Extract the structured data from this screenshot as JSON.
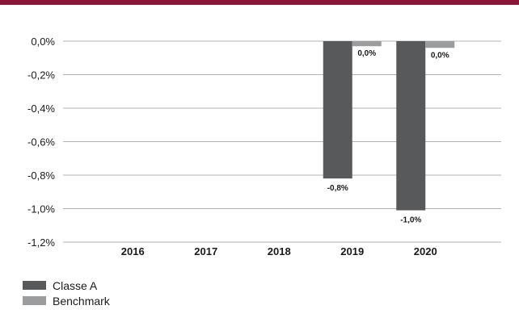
{
  "chart_data": {
    "type": "bar",
    "categories": [
      "2016",
      "2017",
      "2018",
      "2019",
      "2020"
    ],
    "series": [
      {
        "name": "Classe A",
        "color": "#58595b",
        "values": [
          null,
          null,
          null,
          -0.82,
          -1.01
        ],
        "labels": [
          null,
          null,
          null,
          "-0,8%",
          "-1,0%"
        ]
      },
      {
        "name": "Benchmark",
        "color": "#9b9c9e",
        "values": [
          null,
          null,
          null,
          -0.03,
          -0.04
        ],
        "labels": [
          null,
          null,
          null,
          "0,0%",
          "0,0%"
        ]
      }
    ],
    "y_ticks": [
      0,
      -0.2,
      -0.4,
      -0.6,
      -0.8,
      -1.0,
      -1.2
    ],
    "y_tick_labels": [
      "0,0%",
      "-0,2%",
      "-0,4%",
      "-0,6%",
      "-0,8%",
      "-1,0%",
      "-1,2%"
    ],
    "ylim": [
      -1.2,
      0
    ],
    "grid": true,
    "legend_position": "bottom-left",
    "accent_bar_color": "#8a1538",
    "gridline_color": "#b3b3b3"
  }
}
